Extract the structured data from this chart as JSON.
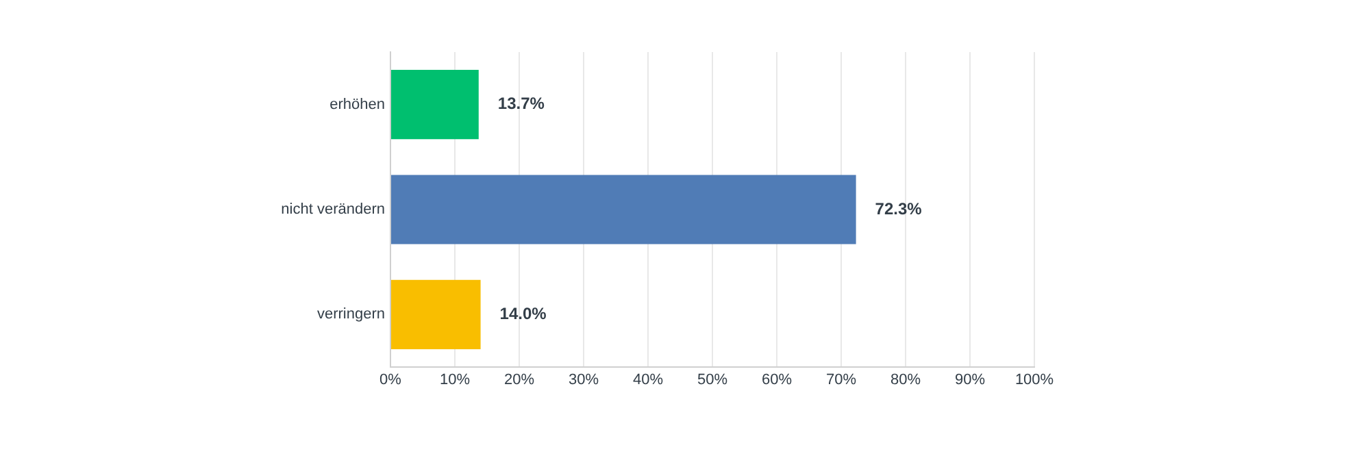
{
  "chart_data": {
    "type": "bar",
    "orientation": "horizontal",
    "categories": [
      "erhöhen",
      "nicht verändern",
      "verringern"
    ],
    "values": [
      13.7,
      72.3,
      14.0
    ],
    "colors": [
      "#00bf6f",
      "#507cb6",
      "#f9be00"
    ],
    "value_labels": [
      "13.7%",
      "72.3%",
      "14.0%"
    ],
    "xlim": [
      0,
      100
    ],
    "xticks": [
      {
        "value": 0,
        "label": "0%"
      },
      {
        "value": 10,
        "label": "10%"
      },
      {
        "value": 20,
        "label": "20%"
      },
      {
        "value": 30,
        "label": "30%"
      },
      {
        "value": 40,
        "label": "40%"
      },
      {
        "value": 50,
        "label": "50%"
      },
      {
        "value": 60,
        "label": "60%"
      },
      {
        "value": 70,
        "label": "70%"
      },
      {
        "value": 80,
        "label": "80%"
      },
      {
        "value": 90,
        "label": "90%"
      },
      {
        "value": 100,
        "label": "100%"
      }
    ],
    "grid": "x",
    "legend": false
  }
}
